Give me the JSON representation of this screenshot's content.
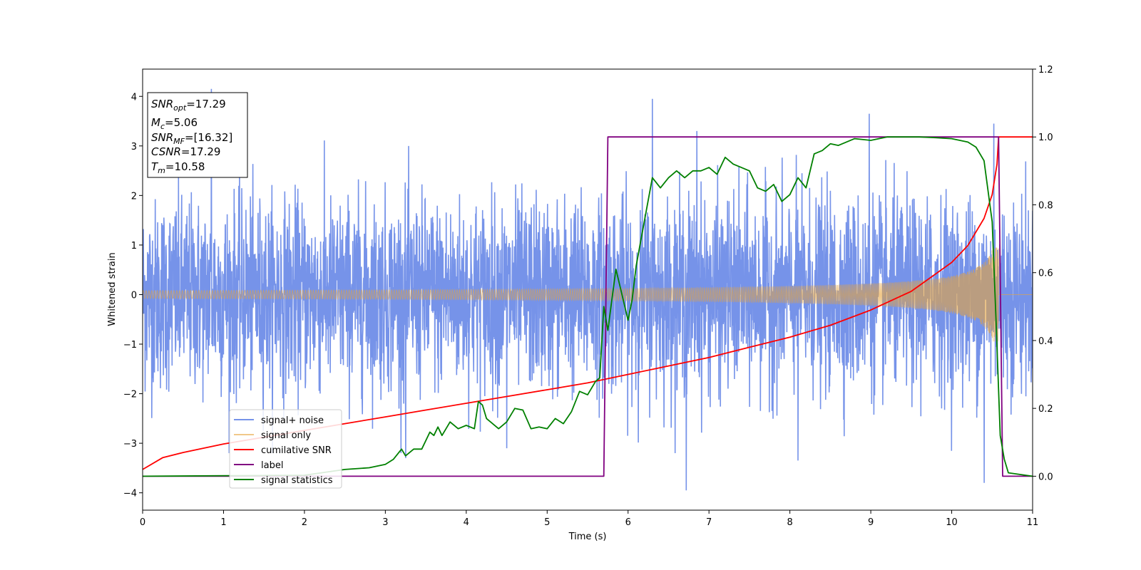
{
  "chart_data": {
    "type": "line",
    "xlabel": "Time (s)",
    "ylabel": "Whitened strain",
    "xlim": [
      0,
      11
    ],
    "ylim": [
      -4.35,
      4.55
    ],
    "y2lim": [
      -0.1,
      1.2
    ],
    "xticks": [
      "0",
      "1",
      "2",
      "3",
      "4",
      "5",
      "6",
      "7",
      "8",
      "9",
      "10",
      "11"
    ],
    "yticks": [
      "4",
      "3",
      "2",
      "1",
      "0",
      "−1",
      "−2",
      "−3",
      "−4"
    ],
    "y2ticks": [
      "1.2",
      "1.0",
      "0.8",
      "0.6",
      "0.4",
      "0.2",
      "0.0"
    ],
    "grid": false,
    "legend_position": "lower-left",
    "info_box": {
      "snr_opt": {
        "var": "SNR",
        "sub": "opt",
        "value": "=17.29"
      },
      "mc": {
        "var": "M",
        "sub": "c",
        "value": "=5.06"
      },
      "snr_mf": {
        "var": "SNR",
        "sub": "MF",
        "value": "=[16.32]"
      },
      "csnr": {
        "var": "CSNR",
        "value": "=17.29"
      },
      "tm": {
        "var": "T",
        "sub": "m",
        "value": "=10.58"
      }
    },
    "series": [
      {
        "name": "signal+ noise",
        "axis": "left",
        "color": "#4169e1",
        "kind": "noise",
        "noise_sigma": 1.0,
        "spikes": [
          [
            0.85,
            4.15
          ],
          [
            6.3,
            3.95
          ],
          [
            6.72,
            -3.95
          ],
          [
            8.98,
            3.65
          ],
          [
            10.52,
            3.45
          ],
          [
            10.4,
            -3.8
          ],
          [
            6.85,
            3.3
          ],
          [
            3.25,
            -3.3
          ],
          [
            4.5,
            -3.1
          ],
          [
            8.1,
            -3.35
          ]
        ]
      },
      {
        "name": "signal only",
        "axis": "left",
        "color": "#e8a33a",
        "kind": "chirp",
        "t_merge": 10.58,
        "amp_start": 0.08,
        "amp_end": 0.95
      },
      {
        "name": "cumilative SNR",
        "axis": "right",
        "color": "#ff0000",
        "x": [
          0,
          0.25,
          0.5,
          1,
          1.5,
          2,
          2.5,
          3,
          3.5,
          4,
          4.5,
          5,
          5.5,
          6,
          6.5,
          7,
          7.5,
          8,
          8.5,
          9,
          9.5,
          10,
          10.2,
          10.4,
          10.5,
          10.56,
          10.58,
          11
        ],
        "y": [
          0.02,
          0.055,
          0.07,
          0.095,
          0.115,
          0.135,
          0.155,
          0.175,
          0.195,
          0.215,
          0.235,
          0.255,
          0.275,
          0.3,
          0.325,
          0.35,
          0.38,
          0.41,
          0.445,
          0.49,
          0.545,
          0.63,
          0.68,
          0.76,
          0.83,
          0.92,
          1.0,
          1.0
        ]
      },
      {
        "name": "label",
        "axis": "right",
        "color": "#800080",
        "x": [
          0,
          5.7,
          5.75,
          10.58,
          10.63,
          11
        ],
        "y": [
          0.0,
          0.0,
          1.0,
          1.0,
          0.0,
          0.0
        ]
      },
      {
        "name": "signal statistics",
        "axis": "right",
        "color": "#008000",
        "x": [
          0,
          2.0,
          2.5,
          2.8,
          3.0,
          3.1,
          3.2,
          3.25,
          3.35,
          3.45,
          3.55,
          3.6,
          3.65,
          3.7,
          3.8,
          3.9,
          4.0,
          4.1,
          4.15,
          4.2,
          4.25,
          4.3,
          4.4,
          4.5,
          4.6,
          4.7,
          4.8,
          4.9,
          5.0,
          5.1,
          5.2,
          5.3,
          5.4,
          5.5,
          5.6,
          5.65,
          5.7,
          5.75,
          5.8,
          5.85,
          5.9,
          6.0,
          6.05,
          6.1,
          6.2,
          6.3,
          6.4,
          6.5,
          6.6,
          6.7,
          6.8,
          6.9,
          7.0,
          7.1,
          7.2,
          7.3,
          7.4,
          7.5,
          7.6,
          7.7,
          7.8,
          7.9,
          8.0,
          8.1,
          8.2,
          8.3,
          8.4,
          8.5,
          8.6,
          8.8,
          9.0,
          9.2,
          9.4,
          9.6,
          9.8,
          10.0,
          10.1,
          10.2,
          10.3,
          10.4,
          10.5,
          10.55,
          10.6,
          10.65,
          10.7,
          11
        ],
        "y": [
          0.0,
          0.003,
          0.02,
          0.025,
          0.035,
          0.05,
          0.08,
          0.06,
          0.08,
          0.08,
          0.13,
          0.12,
          0.145,
          0.12,
          0.16,
          0.14,
          0.15,
          0.14,
          0.22,
          0.21,
          0.17,
          0.16,
          0.14,
          0.16,
          0.2,
          0.195,
          0.14,
          0.145,
          0.14,
          0.17,
          0.155,
          0.19,
          0.25,
          0.24,
          0.28,
          0.29,
          0.5,
          0.43,
          0.52,
          0.61,
          0.56,
          0.46,
          0.52,
          0.62,
          0.75,
          0.88,
          0.85,
          0.88,
          0.9,
          0.88,
          0.9,
          0.9,
          0.91,
          0.89,
          0.94,
          0.92,
          0.91,
          0.9,
          0.85,
          0.84,
          0.86,
          0.81,
          0.83,
          0.88,
          0.85,
          0.95,
          0.96,
          0.98,
          0.975,
          0.995,
          0.99,
          1.0,
          1.0,
          1.0,
          0.998,
          0.995,
          0.99,
          0.985,
          0.97,
          0.93,
          0.75,
          0.45,
          0.12,
          0.05,
          0.01,
          0.0
        ]
      }
    ]
  }
}
